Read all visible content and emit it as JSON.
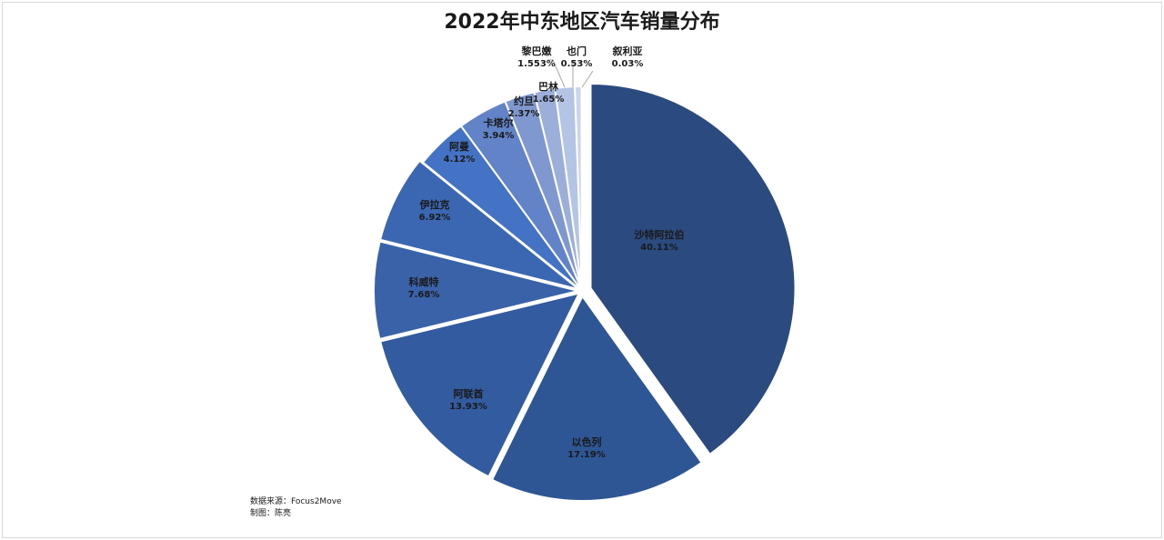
{
  "chart_data": {
    "type": "pie",
    "title": "2022年中东地区汽车销量分布",
    "slices": [
      {
        "label": "沙特阿拉伯",
        "value": 40.11,
        "pct_text": "40.11%",
        "color": "#2b4a7f"
      },
      {
        "label": "以色列",
        "value": 17.19,
        "pct_text": "17.19%",
        "color": "#2e5594"
      },
      {
        "label": "阿联酋",
        "value": 13.93,
        "pct_text": "13.93%",
        "color": "#325ba0"
      },
      {
        "label": "科威特",
        "value": 7.68,
        "pct_text": "7.68%",
        "color": "#3962a8"
      },
      {
        "label": "伊拉克",
        "value": 6.92,
        "pct_text": "6.92%",
        "color": "#3b66b2"
      },
      {
        "label": "阿曼",
        "value": 4.12,
        "pct_text": "4.12%",
        "color": "#4472c4"
      },
      {
        "label": "卡塔尔",
        "value": 3.94,
        "pct_text": "3.94%",
        "color": "#6283c8"
      },
      {
        "label": "约旦",
        "value": 2.37,
        "pct_text": "2.37%",
        "color": "#7f98d0"
      },
      {
        "label": "巴林",
        "value": 1.65,
        "pct_text": "1.65%",
        "color": "#9bafda"
      },
      {
        "label": "黎巴嫩",
        "value": 1.553,
        "pct_text": "1.553%",
        "color": "#b4c4e4"
      },
      {
        "label": "也门",
        "value": 0.53,
        "pct_text": "0.53%",
        "color": "#c9d5ec"
      },
      {
        "label": "叙利亚",
        "value": 0.03,
        "pct_text": "0.03%",
        "color": "#dde5f3"
      }
    ]
  },
  "footnotes": {
    "source": "数据来源：Focus2Move",
    "author": "制图：陈亮"
  }
}
